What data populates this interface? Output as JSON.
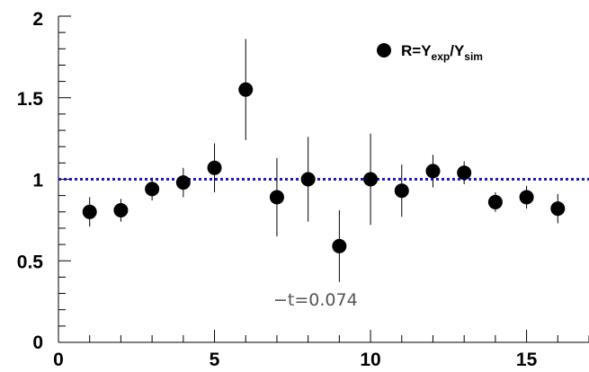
{
  "chart_data": {
    "type": "scatter",
    "title": "",
    "xlabel": "",
    "ylabel": "",
    "xlim": [
      0,
      17
    ],
    "ylim": [
      0,
      2
    ],
    "x_major_ticks": [
      0,
      5,
      10,
      15
    ],
    "y_major_ticks": [
      0,
      0.5,
      1,
      1.5,
      2
    ],
    "x_tick_labels": [
      "0",
      "5",
      "10",
      "15"
    ],
    "y_tick_labels": [
      "0",
      "0.5",
      "1",
      "1.5",
      "2"
    ],
    "grid": false,
    "legend_placement": "top-right",
    "legend": {
      "base": "R=Y",
      "sub1": "exp",
      "mid": "/Y",
      "sub2": "sim"
    },
    "annotation": "−t=0.074",
    "reference_line": {
      "y": 1,
      "style": "dotted",
      "color": "#1a1acc"
    },
    "marker_color": "#000000",
    "series": [
      {
        "x": [
          1,
          2,
          3,
          4,
          5,
          6,
          7,
          8,
          9,
          10,
          11,
          12,
          13,
          14,
          15,
          16
        ],
        "y": [
          0.8,
          0.81,
          0.94,
          0.98,
          1.07,
          1.55,
          0.89,
          1.0,
          0.59,
          1.0,
          0.93,
          1.05,
          1.04,
          0.86,
          0.89,
          0.82
        ],
        "yerr": [
          0.09,
          0.07,
          0.07,
          0.09,
          0.15,
          0.31,
          0.24,
          0.26,
          0.22,
          0.28,
          0.16,
          0.1,
          0.07,
          0.06,
          0.07,
          0.09
        ]
      }
    ]
  }
}
